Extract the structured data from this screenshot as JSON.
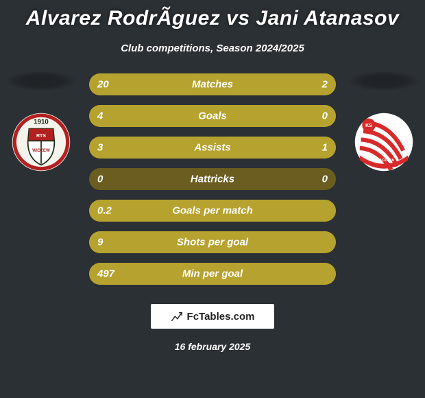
{
  "background_color": "#2b3035",
  "title": "Alvarez RodrÃ­guez vs Jani Atanasov",
  "title_fontsize": 30,
  "subtitle": "Club competitions, Season 2024/2025",
  "subtitle_fontsize": 15,
  "date": "16 february 2025",
  "watermark": {
    "text": "FcTables.com"
  },
  "bars": {
    "track_color": "#6a5d1f",
    "left_fill_color": "#b6a22e",
    "right_fill_color": "#b6a22e",
    "track_height": 32,
    "track_radius": 16,
    "label_fontsize": 15,
    "rows": [
      {
        "label": "Matches",
        "left_value": "20",
        "right_value": "2",
        "left_pct": 91,
        "right_pct": 9
      },
      {
        "label": "Goals",
        "left_value": "4",
        "right_value": "0",
        "left_pct": 100,
        "right_pct": 0
      },
      {
        "label": "Assists",
        "left_value": "3",
        "right_value": "1",
        "left_pct": 75,
        "right_pct": 25
      },
      {
        "label": "Hattricks",
        "left_value": "0",
        "right_value": "0",
        "left_pct": 0,
        "right_pct": 0
      },
      {
        "label": "Goals per match",
        "left_value": "0.2",
        "right_value": "",
        "left_pct": 100,
        "right_pct": 0
      },
      {
        "label": "Shots per goal",
        "left_value": "9",
        "right_value": "",
        "left_pct": 100,
        "right_pct": 0
      },
      {
        "label": "Min per goal",
        "left_value": "497",
        "right_value": "",
        "left_pct": 100,
        "right_pct": 0
      }
    ]
  },
  "crest_left": {
    "outer_fill": "#f5f4ec",
    "ring_fill": "#b22020",
    "inner_top": "#b22020",
    "inner_bottom": "#ffffff",
    "shield_stroke": "#1f2a17",
    "year": "1910"
  },
  "crest_right": {
    "bg": "#ffffff",
    "stripe": "#d82a2a",
    "band": "#d82a2a"
  }
}
